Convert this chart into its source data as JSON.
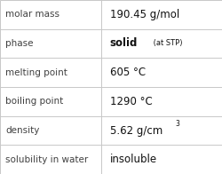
{
  "rows": [
    {
      "label": "molar mass",
      "value": "190.45 g/mol",
      "type": "plain"
    },
    {
      "label": "phase",
      "value": "solid",
      "type": "sub",
      "sub": " (at STP)"
    },
    {
      "label": "melting point",
      "value": "605 °C",
      "type": "plain"
    },
    {
      "label": "boiling point",
      "value": "1290 °C",
      "type": "plain"
    },
    {
      "label": "density",
      "value": "5.62 g/cm",
      "type": "super",
      "super": "3"
    },
    {
      "label": "solubility in water",
      "value": "insoluble",
      "type": "plain"
    }
  ],
  "bg_color": "#ffffff",
  "border_color": "#c8c8c8",
  "label_color": "#404040",
  "value_color": "#111111",
  "label_fontsize": 7.5,
  "value_fontsize": 8.5,
  "sub_fontsize": 6.0,
  "super_fontsize": 5.5,
  "col_split": 0.455,
  "fig_width": 2.5,
  "fig_height": 1.96,
  "dpi": 100
}
